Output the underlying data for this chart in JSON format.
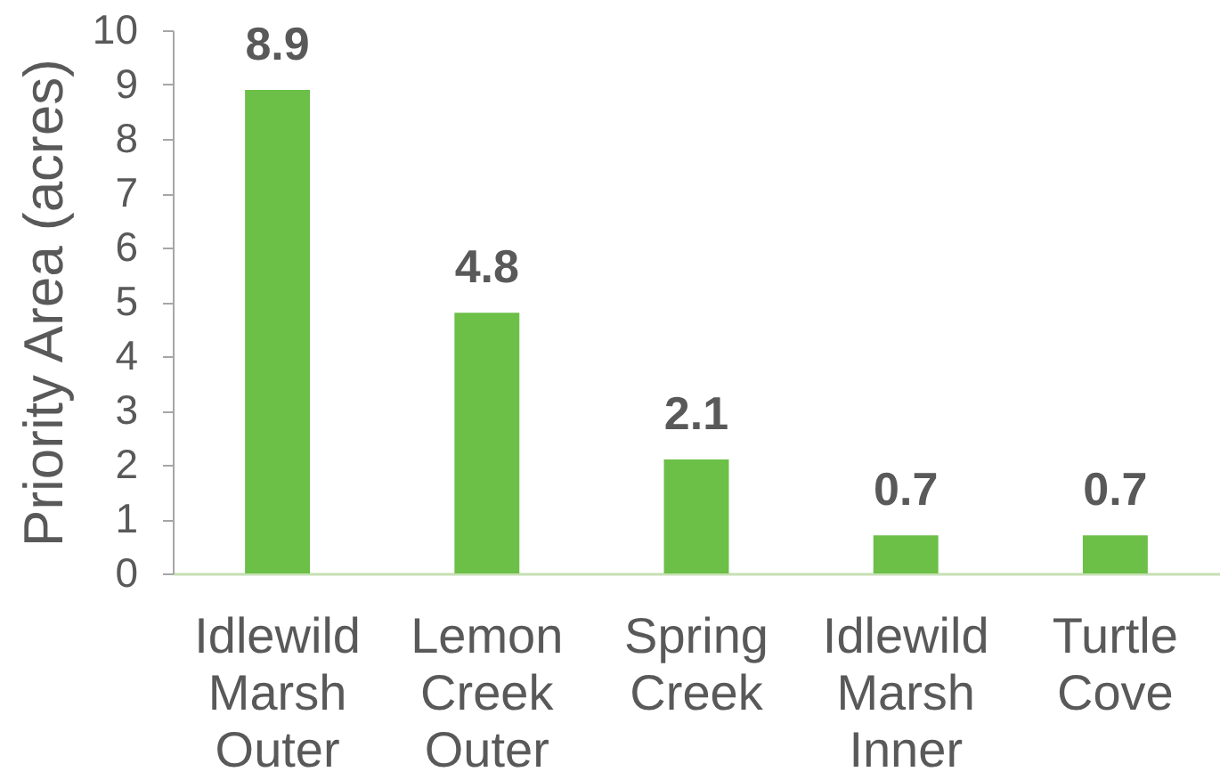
{
  "chart_data": {
    "type": "bar",
    "ylabel": "Priority Area (acres)",
    "categories": [
      "Idlewild Marsh Outer",
      "Lemon Creek Outer",
      "Spring Creek",
      "Idlewild Marsh Inner",
      "Turtle Cove"
    ],
    "values": [
      8.9,
      4.8,
      2.1,
      0.7,
      0.7
    ],
    "color": "#6cbf47",
    "ylim": [
      0,
      10
    ],
    "yticks": [
      0,
      1,
      2,
      3,
      4,
      5,
      6,
      7,
      8,
      9,
      10
    ],
    "data_labels": true
  }
}
